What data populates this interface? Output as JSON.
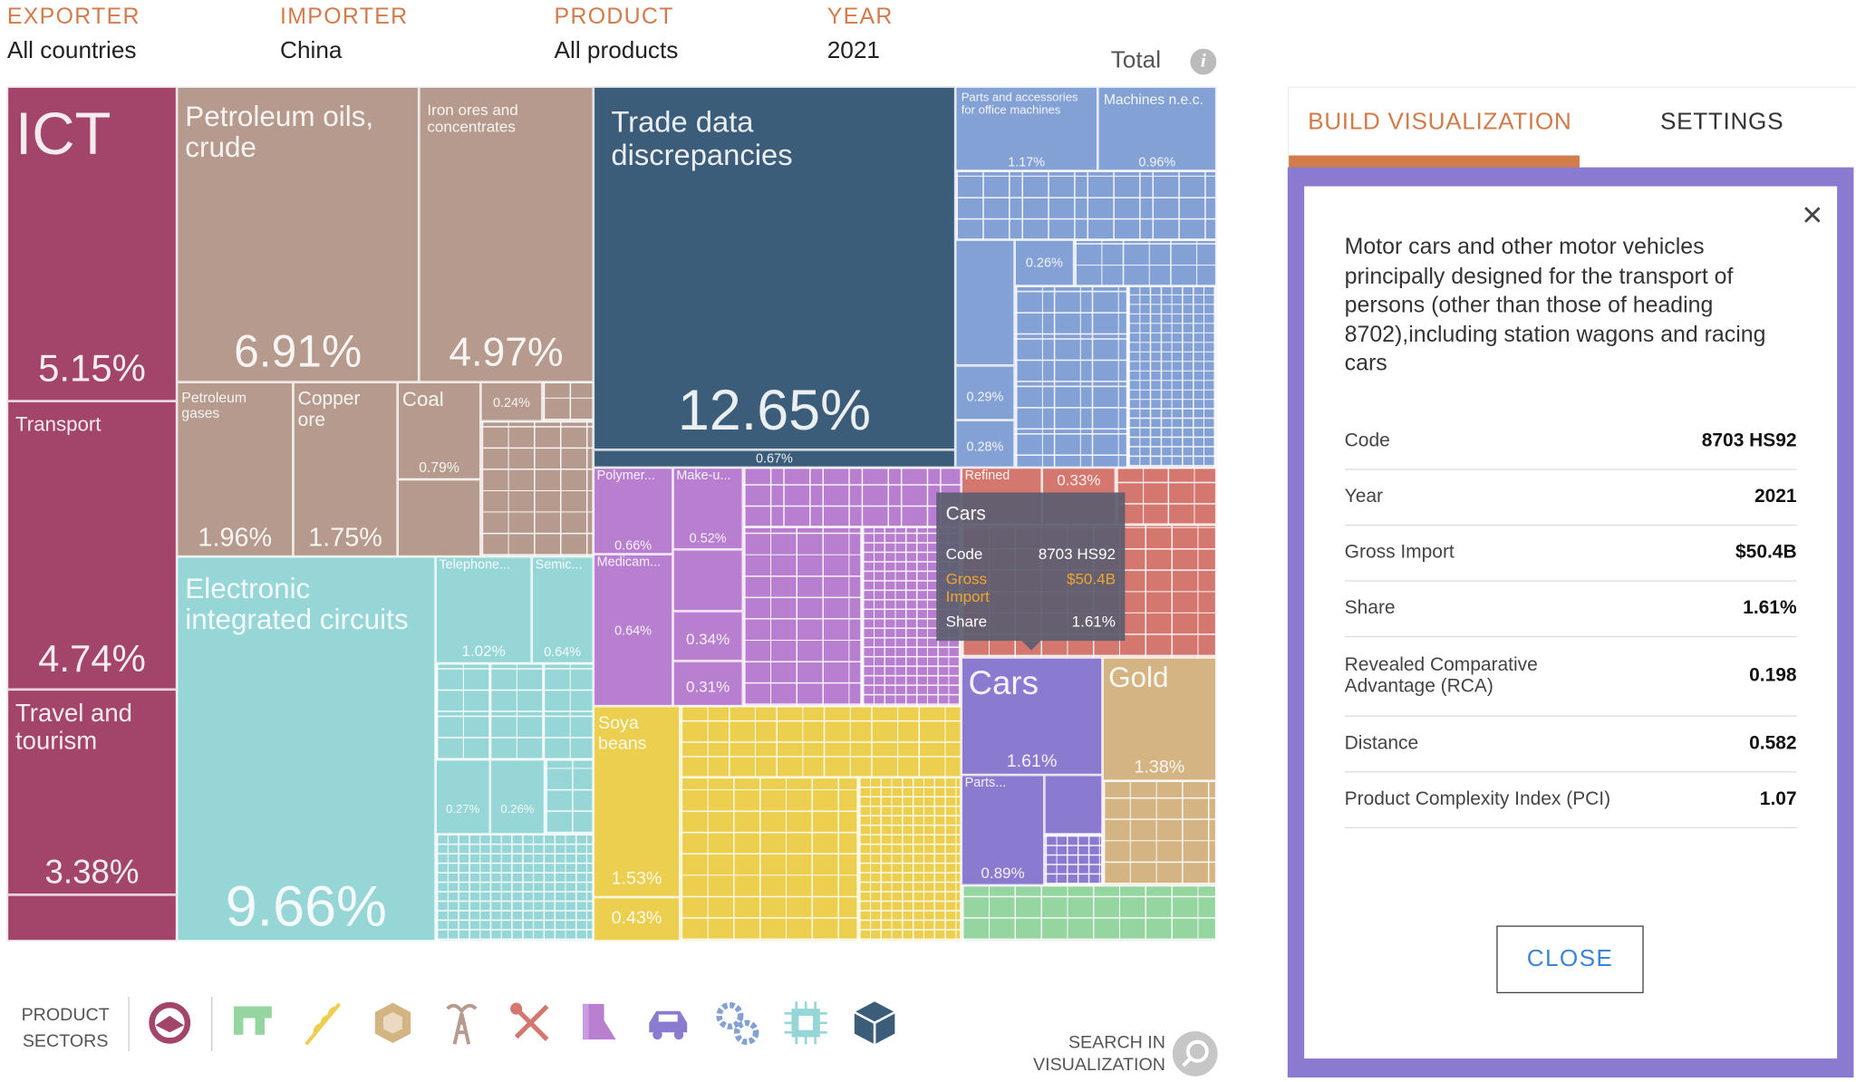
{
  "header": {
    "exporter": {
      "label": "EXPORTER",
      "value": "All countries"
    },
    "importer": {
      "label": "IMPORTER",
      "value": "China"
    },
    "product": {
      "label": "PRODUCT",
      "value": "All products"
    },
    "year": {
      "label": "YEAR",
      "value": "2021"
    },
    "total_label": "Total",
    "info_icon": "i"
  },
  "colors": {
    "services": "#a3446b",
    "minerals": "#b59a8d",
    "electronics": "#97d6d7",
    "other": "#3b5d7a",
    "machinery": "#84a1d6",
    "chemicals": "#b87fd0",
    "stone": "#d4786f",
    "agriculture": "#eccf4e",
    "vehicles": "#8a7bd0",
    "gold": "#d4b483",
    "textiles": "#95d5a0",
    "accent": "#d27b4b",
    "close_text": "#3a86d6"
  },
  "treemap": {
    "ict": {
      "label": "ICT",
      "share": "5.15%"
    },
    "transport": {
      "label": "Transport",
      "share": "4.74%"
    },
    "travel": {
      "label": "Travel and tourism",
      "share": "3.38%"
    },
    "petroleum_crude": {
      "label": "Petroleum oils, crude",
      "share": "6.91%"
    },
    "iron_ores": {
      "label": "Iron ores and concentrates",
      "share": "4.97%"
    },
    "petroleum_gases": {
      "label": "Petroleum gases",
      "share": "1.96%"
    },
    "copper_ore": {
      "label": "Copper ore",
      "share": "1.75%"
    },
    "coal": {
      "label": "Coal",
      "share": "0.79%"
    },
    "mineral_small": {
      "share": "0.24%"
    },
    "eic": {
      "label": "Electronic integrated circuits",
      "share": "9.66%"
    },
    "telephone": {
      "label": "Telephone...",
      "share": "1.02%"
    },
    "semic": {
      "label": "Semic...",
      "share": "0.64%"
    },
    "elec_a": {
      "share": "0.27%"
    },
    "elec_b": {
      "share": "0.26%"
    },
    "trade_disc": {
      "label": "Trade data discrepancies",
      "share": "12.65%"
    },
    "other_strip": {
      "share": "0.67%"
    },
    "parts_office": {
      "label": "Parts and accessories for office machines",
      "share": "1.17%"
    },
    "machines_nec": {
      "label": "Machines n.e.c.",
      "share": "0.96%"
    },
    "mach_a": {
      "share": "0.26%"
    },
    "mach_b": {
      "share": "0.29%"
    },
    "mach_c": {
      "share": "0.28%"
    },
    "polymer": {
      "label": "Polymer...",
      "share": "0.66%"
    },
    "medicam": {
      "label": "Medicam...",
      "share": "0.64%"
    },
    "makeup": {
      "label": "Make-u...",
      "share": "0.52%"
    },
    "chem_a": {
      "share": "0.34%"
    },
    "chem_b": {
      "share": "0.31%"
    },
    "refined": {
      "label": "Refined",
      "share": ""
    },
    "stone_a": {
      "share": "0.33%"
    },
    "soya": {
      "label": "Soya beans",
      "share": "1.53%"
    },
    "agri_b": {
      "share": "0.43%"
    },
    "cars": {
      "label": "Cars",
      "share": "1.61%"
    },
    "parts_veh": {
      "label": "Parts...",
      "share": "0.89%"
    },
    "gold": {
      "label": "Gold",
      "share": "1.38%"
    }
  },
  "tooltip": {
    "title": "Cars",
    "rows": [
      {
        "label": "Code",
        "value": "8703 HS92"
      },
      {
        "label": "Gross Import",
        "value": "$50.4B"
      },
      {
        "label": "Share",
        "value": "1.61%"
      }
    ]
  },
  "panel": {
    "tabs": [
      {
        "label": "BUILD VISUALIZATION",
        "active": true
      },
      {
        "label": "SETTINGS",
        "active": false
      }
    ],
    "close_icon": "×",
    "description": "Motor cars and other motor vehicles principally designed for the transport of persons (other than those of heading 8702),including station wagons and racing cars",
    "rows": [
      {
        "label": "Code",
        "value": "8703 HS92"
      },
      {
        "label": "Year",
        "value": "2021"
      },
      {
        "label": "Gross Import",
        "value": "$50.4B"
      },
      {
        "label": "Share",
        "value": "1.61%"
      },
      {
        "label": "Revealed Comparative Advantage (RCA)",
        "value": "0.198"
      },
      {
        "label": "Distance",
        "value": "0.582"
      },
      {
        "label": "Product Complexity Index (PCI)",
        "value": "1.07"
      }
    ],
    "close_button": "CLOSE"
  },
  "footer": {
    "sectors_label_1": "PRODUCT",
    "sectors_label_2": "SECTORS",
    "sector_icons": [
      "services-icon",
      "textiles-icon",
      "agriculture-icon",
      "stone-icon",
      "minerals-icon",
      "metals-icon",
      "chemicals-icon",
      "vehicles-icon",
      "machinery-icon",
      "electronics-icon",
      "other-icon"
    ],
    "search_label_1": "SEARCH IN",
    "search_label_2": "VISUALIZATION"
  }
}
